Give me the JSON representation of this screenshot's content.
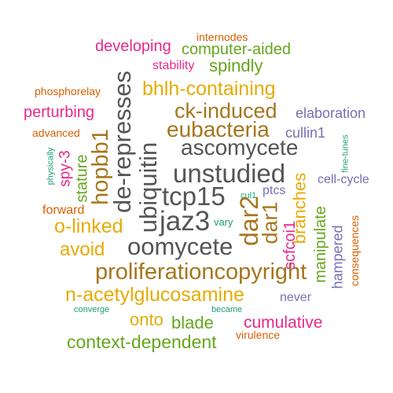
{
  "colors": {
    "magenta": "#e7298a",
    "orange": "#d95f02",
    "green": "#66a61e",
    "gold": "#e6ab02",
    "brown": "#a6761d",
    "gray": "#555555",
    "purple": "#7570b3",
    "teal": "#1b9e77"
  },
  "words": [
    {
      "id": "internodes",
      "text": "internodes",
      "color": "orange"
    },
    {
      "id": "developing",
      "text": "developing",
      "color": "magenta"
    },
    {
      "id": "computer-aided",
      "text": "computer-aided",
      "color": "green"
    },
    {
      "id": "stability",
      "text": "stability",
      "color": "magenta"
    },
    {
      "id": "spindly",
      "text": "spindly",
      "color": "green"
    },
    {
      "id": "phosphorelay",
      "text": "phosphorelay",
      "color": "orange"
    },
    {
      "id": "bhlh-containing",
      "text": "bhlh-containing",
      "color": "gold"
    },
    {
      "id": "perturbing",
      "text": "perturbing",
      "color": "magenta"
    },
    {
      "id": "ck-induced",
      "text": "ck-induced",
      "color": "brown"
    },
    {
      "id": "elaboration",
      "text": "elaboration",
      "color": "purple"
    },
    {
      "id": "eubacteria",
      "text": "eubacteria",
      "color": "brown"
    },
    {
      "id": "advanced",
      "text": "advanced",
      "color": "orange"
    },
    {
      "id": "cullin1",
      "text": "cullin1",
      "color": "purple"
    },
    {
      "id": "ascomycete",
      "text": "ascomycete",
      "color": "gray"
    },
    {
      "id": "unstudied",
      "text": "unstudied",
      "color": "gray"
    },
    {
      "id": "tcp15",
      "text": "tcp15",
      "color": "gray"
    },
    {
      "id": "jaz3",
      "text": "jaz3",
      "color": "gray"
    },
    {
      "id": "cell-cycle",
      "text": "cell-cycle",
      "color": "purple"
    },
    {
      "id": "ptcs",
      "text": "ptcs",
      "color": "purple"
    },
    {
      "id": "cul1",
      "text": "cul1",
      "color": "teal"
    },
    {
      "id": "forward",
      "text": "forward",
      "color": "orange"
    },
    {
      "id": "vary",
      "text": "vary",
      "color": "teal"
    },
    {
      "id": "o-linked",
      "text": "o-linked",
      "color": "gold"
    },
    {
      "id": "avoid",
      "text": "avoid",
      "color": "gold"
    },
    {
      "id": "oomycete",
      "text": "oomycete",
      "color": "gray"
    },
    {
      "id": "proliferationcopyright",
      "text": "proliferationcopyright",
      "color": "brown"
    },
    {
      "id": "n-acetylglucosamine",
      "text": "n-acetylglucosamine",
      "color": "gold"
    },
    {
      "id": "never",
      "text": "never",
      "color": "purple"
    },
    {
      "id": "converge",
      "text": "converge",
      "color": "teal"
    },
    {
      "id": "became",
      "text": "became",
      "color": "teal"
    },
    {
      "id": "onto",
      "text": "onto",
      "color": "gold"
    },
    {
      "id": "blade",
      "text": "blade",
      "color": "green"
    },
    {
      "id": "cumulative",
      "text": "cumulative",
      "color": "magenta"
    },
    {
      "id": "context-dependent",
      "text": "context-dependent",
      "color": "green"
    },
    {
      "id": "virulence",
      "text": "virulence",
      "color": "orange"
    },
    {
      "id": "de-represses",
      "text": "de-represses",
      "color": "gray"
    },
    {
      "id": "ubiquitin",
      "text": "ubiquitin",
      "color": "gray"
    },
    {
      "id": "hopbb1",
      "text": "hopbb1",
      "color": "brown"
    },
    {
      "id": "stature",
      "text": "stature",
      "color": "green"
    },
    {
      "id": "spy-3",
      "text": "spy-3",
      "color": "magenta"
    },
    {
      "id": "physically",
      "text": "physically",
      "color": "teal"
    },
    {
      "id": "dar2",
      "text": "dar2",
      "color": "brown"
    },
    {
      "id": "dar1",
      "text": "dar1",
      "color": "brown"
    },
    {
      "id": "branches",
      "text": "branches",
      "color": "gold"
    },
    {
      "id": "scfcoi1",
      "text": "scfcoi1",
      "color": "magenta"
    },
    {
      "id": "manipulate",
      "text": "manipulate",
      "color": "green"
    },
    {
      "id": "hampered",
      "text": "hampered",
      "color": "purple"
    },
    {
      "id": "consequences",
      "text": "consequences",
      "color": "orange"
    },
    {
      "id": "fine-tunes",
      "text": "fine-tunes",
      "color": "teal"
    }
  ]
}
